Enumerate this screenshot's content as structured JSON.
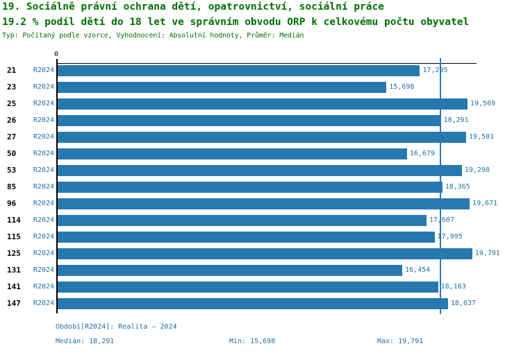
{
  "header": {
    "title_line1": "19. Sociálně právní ochrana dětí, opatrovnictví, sociální práce",
    "title_line2": "19.2 % podíl dětí do 18 let ve správním obvodu ORP k celkovému počtu obyvatel",
    "meta_line": "Typ: Počítaný podle vzorce, Vyhodnocení: Absolutní hodnoty, Průměr: Medián"
  },
  "colors": {
    "bar": "#2878b0",
    "blue_text": "#1f6fa8",
    "title_green": "#007000",
    "axis": "#000000",
    "background": "#ffffff"
  },
  "chart_data": {
    "type": "bar",
    "orientation": "horizontal",
    "title": "19. Sociálně právní ochrana dětí, opatrovnictví, sociální práce",
    "subtitle": "19.2 % podíl dětí do 18 let ve správním obvodu ORP k celkovému počtu obyvatel",
    "categories": [
      "21",
      "23",
      "25",
      "26",
      "27",
      "50",
      "53",
      "85",
      "96",
      "114",
      "115",
      "125",
      "131",
      "141",
      "147"
    ],
    "series_label": "R2024",
    "values": [
      17295,
      15698,
      19569,
      18291,
      19501,
      16679,
      19298,
      18365,
      19671,
      17607,
      17995,
      19791,
      16454,
      18163,
      18637
    ],
    "value_labels": [
      "17,295",
      "15,698",
      "19,569",
      "18,291",
      "19,501",
      "16,679",
      "19,298",
      "18,365",
      "19,671",
      "17,607",
      "17,995",
      "19,791",
      "16,454",
      "18,163",
      "18,637"
    ],
    "xlim": [
      0,
      20000
    ],
    "x_tick_labels": [
      "0"
    ],
    "median_value": 18291,
    "grid": false,
    "legend": false
  },
  "footer": {
    "period_line": "Období[R2024]: Realita – 2024",
    "median_label": "Medián: 18,291",
    "min_label": "Min: 15,698",
    "max_label": "Max: 19,791"
  }
}
